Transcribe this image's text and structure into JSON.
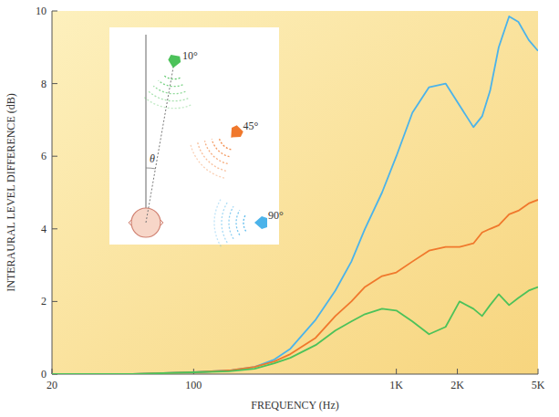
{
  "chart_data": {
    "type": "line",
    "x_label": "FREQUENCY (Hz)",
    "y_label": "INTERAURAL LEVEL DIFFERENCE (dB)",
    "annotation": "θ",
    "log": "x",
    "grid": false,
    "x": [
      20,
      50,
      100,
      150,
      200,
      250,
      300,
      400,
      500,
      600,
      700,
      850,
      1000,
      1200,
      1450,
      1750,
      2050,
      2400,
      2650,
      2900,
      3200,
      3600,
      4000,
      4500,
      5000
    ],
    "series": [
      {
        "name": "90°",
        "color": "#4bb3ea",
        "values": [
          0,
          0,
          0.05,
          0.1,
          0.2,
          0.4,
          0.7,
          1.5,
          2.3,
          3.1,
          4.0,
          5.0,
          6.0,
          7.2,
          7.9,
          8.0,
          7.4,
          6.8,
          7.1,
          7.8,
          9.0,
          9.85,
          9.7,
          9.2,
          8.9
        ]
      },
      {
        "name": "45°",
        "color": "#f0782c",
        "values": [
          0,
          0,
          0.05,
          0.1,
          0.2,
          0.35,
          0.55,
          1.0,
          1.6,
          2.0,
          2.4,
          2.7,
          2.8,
          3.1,
          3.4,
          3.5,
          3.5,
          3.6,
          3.9,
          4.0,
          4.1,
          4.4,
          4.5,
          4.7,
          4.8
        ]
      },
      {
        "name": "10°",
        "color": "#4cc25a",
        "values": [
          0,
          0,
          0.05,
          0.08,
          0.15,
          0.3,
          0.45,
          0.8,
          1.2,
          1.45,
          1.65,
          1.8,
          1.75,
          1.45,
          1.1,
          1.3,
          2.0,
          1.8,
          1.6,
          1.9,
          2.2,
          1.9,
          2.1,
          2.3,
          2.4
        ]
      }
    ],
    "xlim": [
      20,
      5000
    ],
    "ylim": [
      0,
      10
    ],
    "xticks": [
      {
        "value": 20,
        "label": "20"
      },
      100,
      {
        "value": 1000,
        "label": "1K"
      },
      {
        "value": 2000,
        "label": "2K"
      },
      {
        "value": 5000,
        "label": "5K"
      }
    ],
    "yticks": [
      0,
      2,
      4,
      6,
      8,
      10
    ]
  }
}
